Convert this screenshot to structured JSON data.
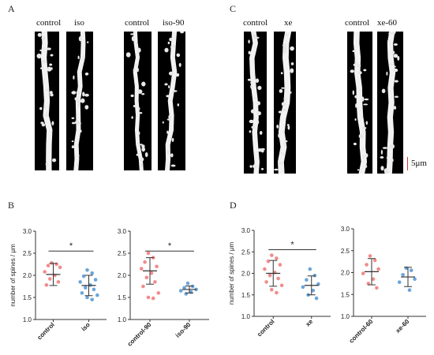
{
  "panels": [
    {
      "letter": "A"
    },
    {
      "letter": "C"
    },
    {
      "letter": "B"
    },
    {
      "letter": "D"
    }
  ],
  "images": {
    "labels": [
      "control",
      "iso",
      "control",
      "iso-90",
      "control",
      "xe",
      "control",
      "xe-60"
    ],
    "scale_label": "5μm"
  },
  "chart_data": [
    {
      "type": "scatter",
      "ylabel": "number of spines / μm",
      "ylim": [
        1.0,
        3.0
      ],
      "yticks": [
        "1.0",
        "1.5",
        "2.0",
        "2.5",
        "3.0"
      ],
      "categories": [
        "control",
        "iso"
      ],
      "significance": "*",
      "colors": [
        "#f08080",
        "#5b9bd5"
      ],
      "groups": [
        {
          "name": "control",
          "mean": 2.02,
          "sd": 0.25,
          "points": [
            2.28,
            2.25,
            2.22,
            2.18,
            2.08,
            2.0,
            1.92,
            1.85,
            1.78
          ]
        },
        {
          "name": "iso",
          "mean": 1.77,
          "sd": 0.23,
          "points": [
            2.12,
            2.05,
            1.98,
            1.9,
            1.85,
            1.78,
            1.72,
            1.68,
            1.6,
            1.55,
            1.5,
            1.45
          ]
        }
      ]
    },
    {
      "type": "scatter",
      "ylabel": "",
      "ylim": [
        1.0,
        3.0
      ],
      "yticks": [
        "1.0",
        "1.5",
        "2.0",
        "2.5",
        "3.0"
      ],
      "categories": [
        "control-90",
        "iso-90"
      ],
      "significance": "*",
      "colors": [
        "#f08080",
        "#5b9bd5"
      ],
      "groups": [
        {
          "name": "control-90",
          "mean": 2.1,
          "sd": 0.3,
          "points": [
            2.5,
            2.4,
            2.3,
            2.2,
            2.15,
            2.05,
            1.95,
            1.85,
            1.75,
            1.6,
            1.5,
            1.48
          ]
        },
        {
          "name": "iso-90",
          "mean": 1.68,
          "sd": 0.08,
          "points": [
            1.82,
            1.75,
            1.72,
            1.68,
            1.65,
            1.62,
            1.58
          ]
        }
      ]
    },
    {
      "type": "scatter",
      "ylabel": "number of spines / μm",
      "ylim": [
        1.0,
        3.0
      ],
      "yticks": [
        "1.0",
        "1.5",
        "2.0",
        "2.5",
        "3.0"
      ],
      "categories": [
        "control",
        "xe"
      ],
      "significance": "*",
      "colors": [
        "#f08080",
        "#5b9bd5"
      ],
      "groups": [
        {
          "name": "control",
          "mean": 2.0,
          "sd": 0.3,
          "points": [
            2.42,
            2.35,
            2.28,
            2.2,
            2.1,
            2.02,
            1.95,
            1.88,
            1.8,
            1.72,
            1.62,
            1.55
          ]
        },
        {
          "name": "xe",
          "mean": 1.72,
          "sd": 0.22,
          "points": [
            2.1,
            1.95,
            1.85,
            1.75,
            1.68,
            1.6,
            1.5,
            1.42
          ]
        }
      ]
    },
    {
      "type": "scatter",
      "ylabel": "",
      "ylim": [
        1.0,
        3.0
      ],
      "yticks": [
        "1.0",
        "1.5",
        "2.0",
        "2.5",
        "3.0"
      ],
      "categories": [
        "control-60",
        "xe-60"
      ],
      "significance": "",
      "colors": [
        "#f08080",
        "#5b9bd5"
      ],
      "groups": [
        {
          "name": "control-60",
          "mean": 2.02,
          "sd": 0.3,
          "points": [
            2.38,
            2.28,
            2.18,
            2.08,
            1.98,
            1.85,
            1.75,
            1.65
          ]
        },
        {
          "name": "xe-60",
          "mean": 1.9,
          "sd": 0.22,
          "points": [
            2.1,
            2.05,
            1.95,
            1.85,
            1.78,
            1.6
          ]
        }
      ]
    }
  ]
}
